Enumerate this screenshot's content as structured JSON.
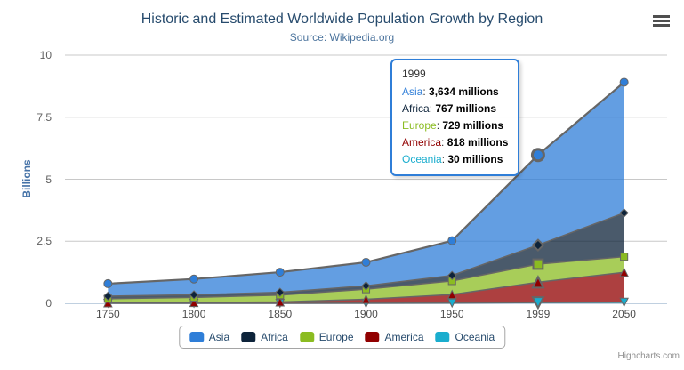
{
  "chart_data": {
    "type": "area",
    "stacking": "normal",
    "title": "Historic and Estimated Worldwide Population Growth by Region",
    "subtitle": "Source: Wikipedia.org",
    "credits": "Highcharts.com",
    "xlabel": "",
    "ylabel": "Billions",
    "ylim": [
      0,
      10
    ],
    "yticks": [
      0,
      2.5,
      5,
      7.5,
      10
    ],
    "grid": true,
    "legend_position": "bottom-center",
    "categories": [
      "1750",
      "1800",
      "1850",
      "1900",
      "1950",
      "1999",
      "2050"
    ],
    "values_unit": "millions",
    "series": [
      {
        "name": "Asia",
        "color": "#2f7ed8",
        "marker": "circle",
        "values": [
          502,
          635,
          809,
          947,
          1402,
          3634,
          5268
        ]
      },
      {
        "name": "Africa",
        "color": "#0d233a",
        "marker": "diamond",
        "values": [
          106,
          107,
          111,
          133,
          221,
          767,
          1766
        ]
      },
      {
        "name": "Europe",
        "color": "#8bbc21",
        "marker": "square",
        "values": [
          163,
          203,
          276,
          408,
          547,
          729,
          628
        ]
      },
      {
        "name": "America",
        "color": "#910000",
        "marker": "triangle",
        "values": [
          18,
          31,
          54,
          156,
          339,
          818,
          1201
        ]
      },
      {
        "name": "Oceania",
        "color": "#1aadce",
        "marker": "triangle-down",
        "values": [
          2,
          2,
          2,
          6,
          13,
          30,
          46
        ]
      }
    ],
    "stack_order_bottom_to_top": [
      "Oceania",
      "America",
      "Europe",
      "Africa",
      "Asia"
    ],
    "hover": {
      "category": "1999",
      "index": 5
    },
    "style_colors": {
      "series_outline": "#666666",
      "grid_line": "#c8c8c8",
      "axis_line": "#c0d0e0",
      "fill_opacity": 0.75
    }
  },
  "tooltip": {
    "header": "1999",
    "rows": [
      {
        "label": "Asia",
        "value": "3,634 millions",
        "color": "#2f7ed8"
      },
      {
        "label": "Africa",
        "value": "767 millions",
        "color": "#0d233a"
      },
      {
        "label": "Europe",
        "value": "729 millions",
        "color": "#8bbc21"
      },
      {
        "label": "America",
        "value": "818 millions",
        "color": "#910000"
      },
      {
        "label": "Oceania",
        "value": "30 millions",
        "color": "#1aadce"
      }
    ]
  },
  "legend": {
    "items": [
      {
        "label": "Asia",
        "color": "#2f7ed8"
      },
      {
        "label": "Africa",
        "color": "#0d233a"
      },
      {
        "label": "Europe",
        "color": "#8bbc21"
      },
      {
        "label": "America",
        "color": "#910000"
      },
      {
        "label": "Oceania",
        "color": "#1aadce"
      }
    ]
  }
}
